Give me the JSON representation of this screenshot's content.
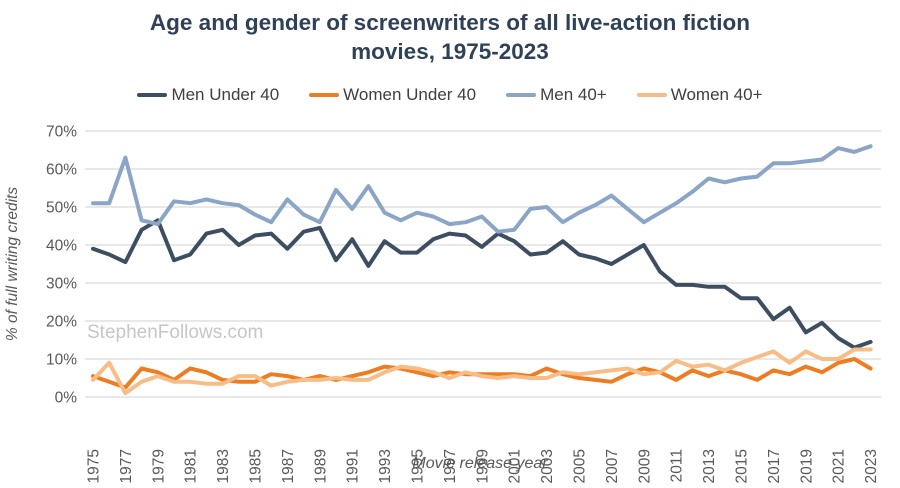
{
  "title": "Age and gender of screenwriters of all live-action fiction movies, 1975-2023",
  "watermark": "StephenFollows.com",
  "colors": {
    "title_text": "#2e4157",
    "tick_text": "#595959",
    "gridline": "#d9d9d9",
    "watermark_text": "#c6c6c6"
  },
  "chart_data": {
    "type": "line",
    "title": "Age and gender of screenwriters of all live-action fiction movies, 1975-2023",
    "xlabel": "Movie release year",
    "ylabel": "% of full writing credits",
    "ylim": [
      0,
      70
    ],
    "ytick_step": 10,
    "ytick_suffix": "%",
    "xtick_step": 2,
    "grid": true,
    "legend_position": "top",
    "x": [
      1975,
      1976,
      1977,
      1978,
      1979,
      1980,
      1981,
      1982,
      1983,
      1984,
      1985,
      1986,
      1987,
      1988,
      1989,
      1990,
      1991,
      1992,
      1993,
      1994,
      1995,
      1996,
      1997,
      1998,
      1999,
      2000,
      2001,
      2002,
      2003,
      2004,
      2005,
      2006,
      2007,
      2008,
      2009,
      2010,
      2011,
      2012,
      2013,
      2014,
      2015,
      2016,
      2017,
      2018,
      2019,
      2020,
      2021,
      2022,
      2023
    ],
    "series": [
      {
        "name": "Men Under 40",
        "color": "#3d4e62",
        "values": [
          39,
          37.5,
          35.5,
          44,
          46.5,
          36,
          37.5,
          43,
          44,
          40,
          42.5,
          43,
          39,
          43.5,
          44.5,
          36,
          41.5,
          34.5,
          41,
          38,
          38,
          41.5,
          43,
          42.5,
          39.5,
          43,
          41,
          37.5,
          38,
          41,
          37.5,
          36.5,
          35,
          37.5,
          40,
          33,
          29.5,
          29.5,
          29,
          29,
          26,
          26,
          20.5,
          23.5,
          17,
          19.5,
          15.5,
          13,
          14.5
        ]
      },
      {
        "name": "Women Under 40",
        "color": "#ee7d22",
        "values": [
          5.5,
          4,
          2.5,
          7.5,
          6.5,
          4.5,
          7.5,
          6.5,
          4.5,
          4,
          4,
          6,
          5.5,
          4.5,
          5.5,
          4.5,
          5.5,
          6.5,
          8,
          7.5,
          6.5,
          5.5,
          6.5,
          6,
          6,
          6,
          6,
          5.5,
          7.5,
          6,
          5,
          4.5,
          4,
          6,
          7.5,
          6.5,
          4.5,
          7,
          5.5,
          7,
          6,
          4.5,
          7,
          6,
          8,
          6.5,
          9,
          10,
          7.5
        ]
      },
      {
        "name": "Men 40+",
        "color": "#8aa5c6",
        "values": [
          51,
          51,
          63,
          46.5,
          45.5,
          51.5,
          51,
          52,
          51,
          50.5,
          48,
          46,
          52,
          48,
          46,
          54.5,
          49.5,
          55.5,
          48.5,
          46.5,
          48.5,
          47.5,
          45.5,
          46,
          47.5,
          43.5,
          44,
          49.5,
          50,
          46,
          48.5,
          50.5,
          53,
          49.5,
          46,
          48.5,
          51,
          54,
          57.5,
          56.5,
          57.5,
          58,
          61.5,
          61.5,
          62,
          62.5,
          65.5,
          64.5,
          66
        ]
      },
      {
        "name": "Women 40+",
        "color": "#f8bd86",
        "values": [
          4.5,
          9,
          1,
          4,
          5.5,
          4,
          4,
          3.5,
          3.5,
          5.5,
          5.5,
          3,
          4,
          4.5,
          4.5,
          5,
          4.5,
          4.5,
          6.5,
          8,
          7.5,
          6.5,
          5,
          6.5,
          5.5,
          5,
          5.5,
          5,
          5,
          6.5,
          6,
          6.5,
          7,
          7.5,
          6,
          6.5,
          9.5,
          8,
          8.5,
          7,
          9,
          10.5,
          12,
          9,
          12,
          10,
          10,
          12.5,
          12.5
        ]
      }
    ]
  }
}
